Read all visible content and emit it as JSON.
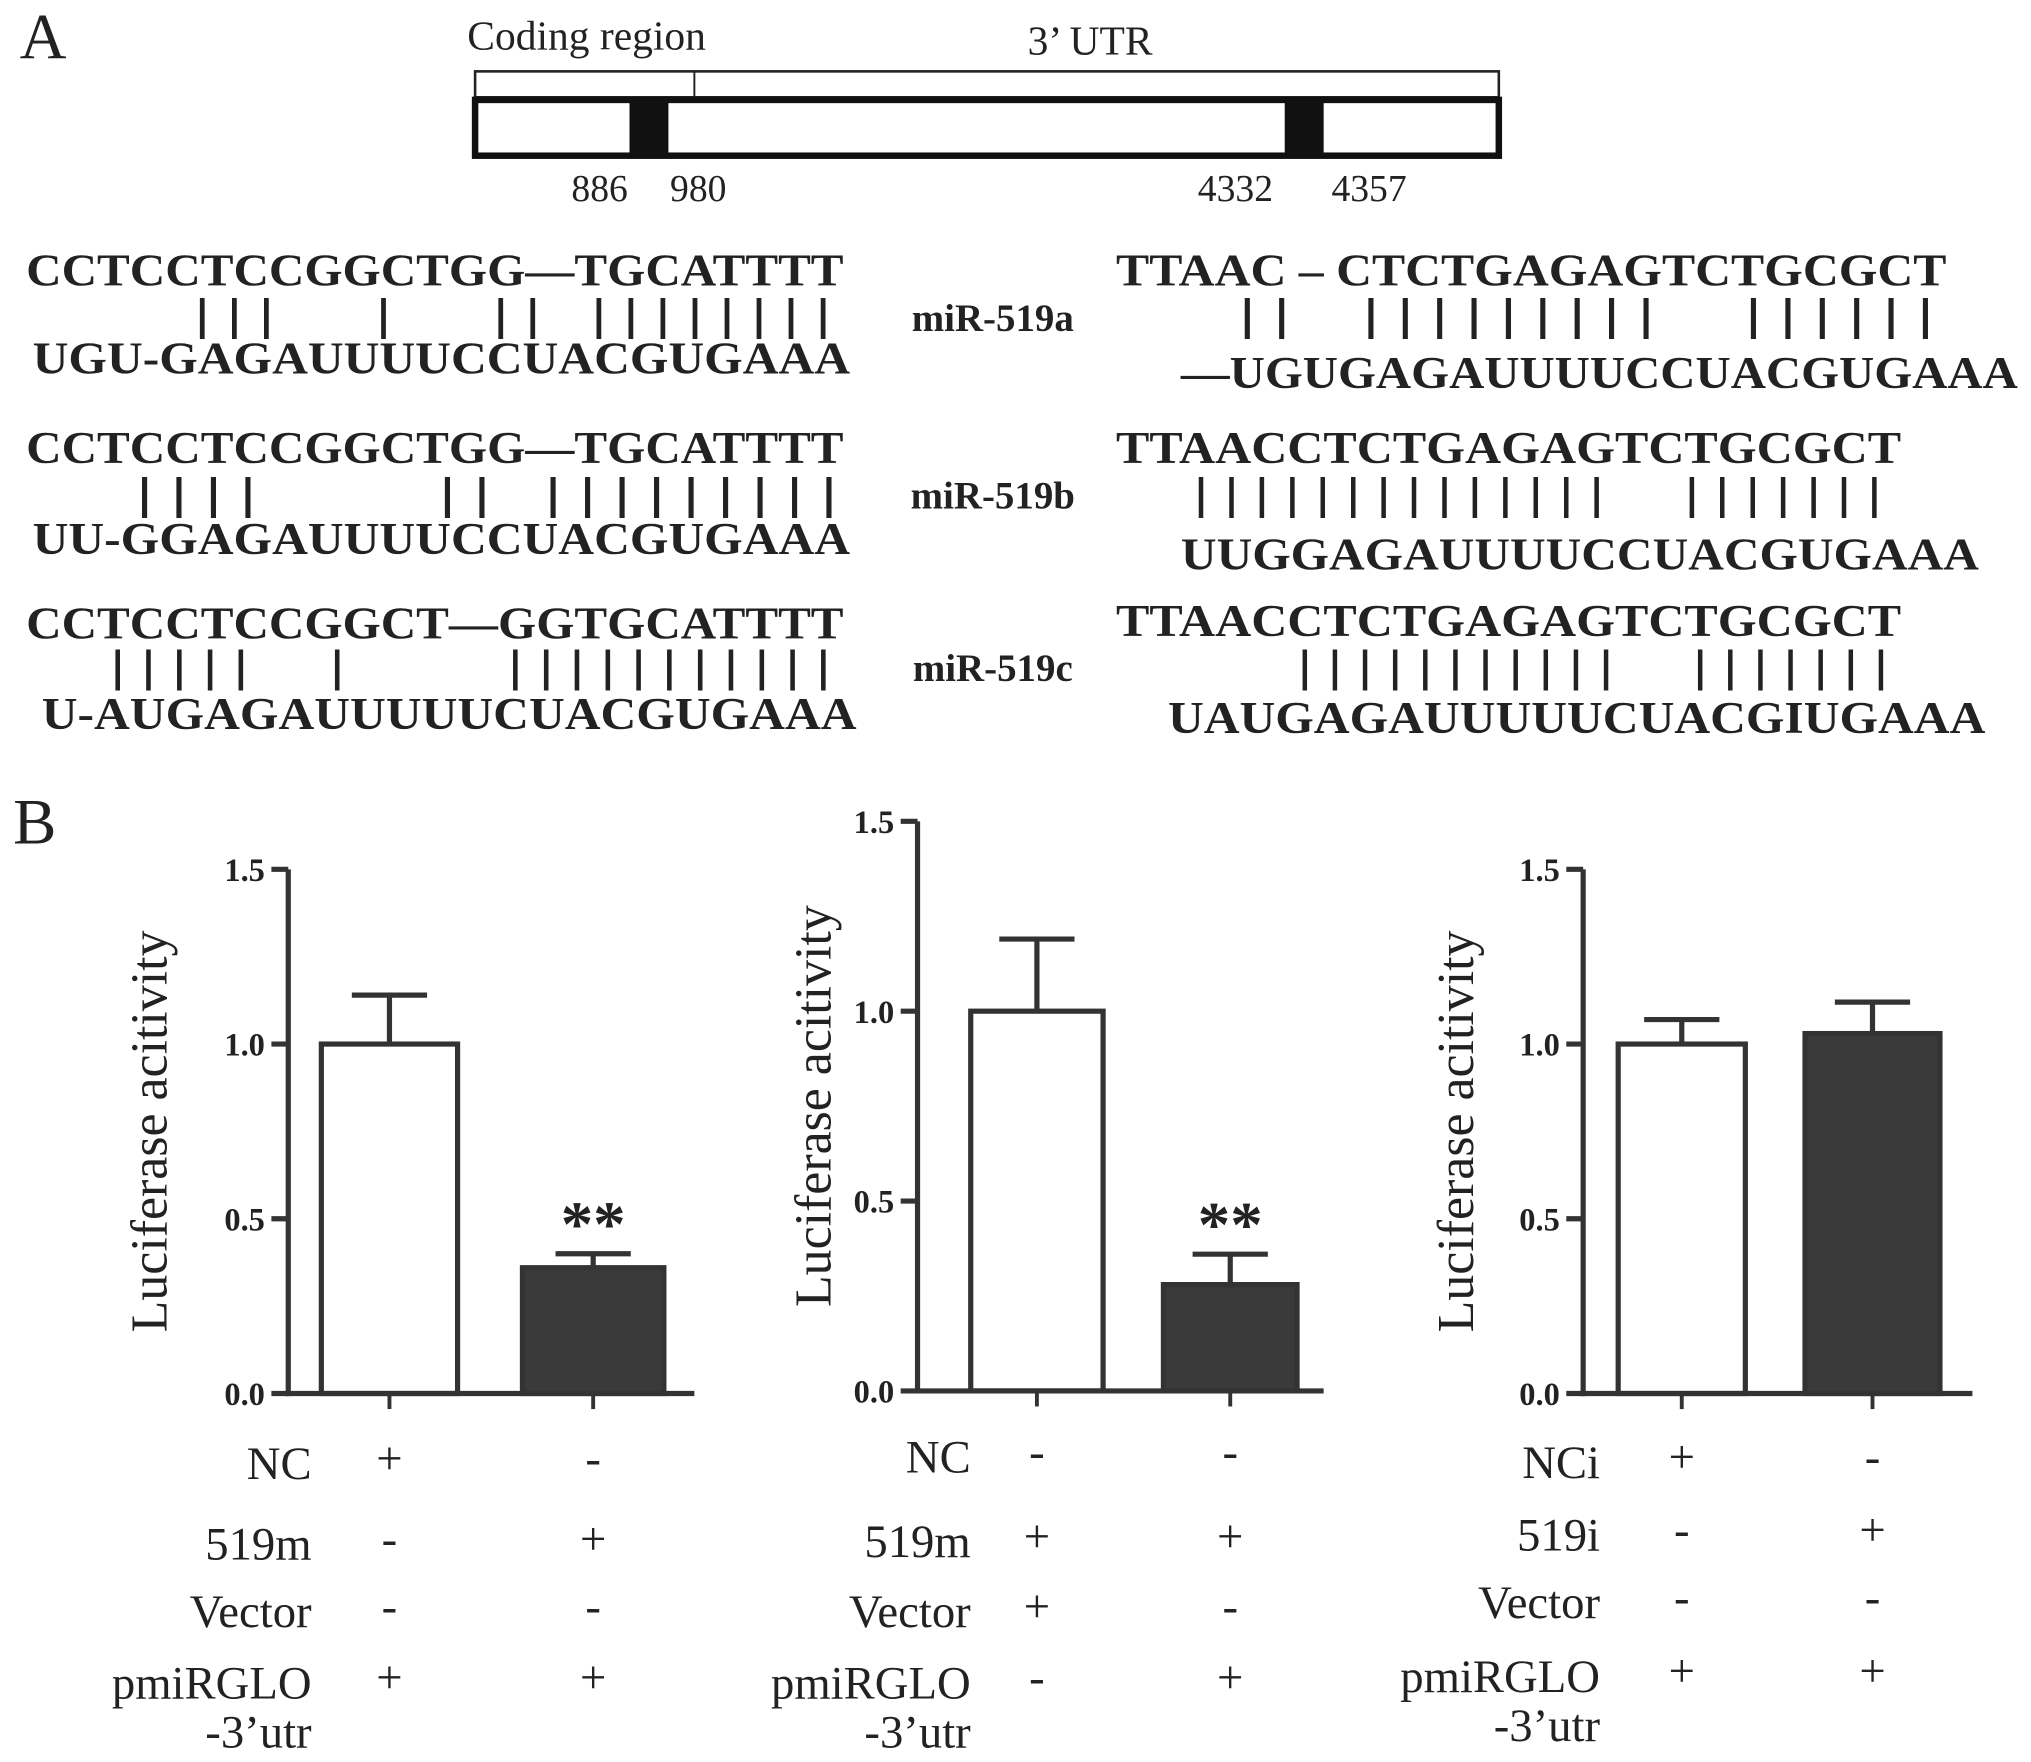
{
  "panel_labels": [
    "A",
    "B"
  ],
  "gene_map": {
    "region_labels": [
      "Coding region",
      "3’ UTR"
    ],
    "positions": [
      886,
      980,
      4332,
      4357
    ]
  },
  "alignments": [
    {
      "name": "miR-519a",
      "left": {
        "target": "CCTCCTCCGGCTGG—TGCATTTT",
        "pairs": "| | |      |      | |   | | | | | | | |",
        "mirna": "UGU-GAGAUUUUCCUACGUGAAA"
      },
      "right": {
        "target": "TTAAC – CTCTGAGAGTCTGCGCT",
        "pairs": "| |    | | | | | | | | |     | | | | | |",
        "mirna": "—UGUGAGAUUUUCCUACGUGAAA"
      }
    },
    {
      "name": "miR-519b",
      "left": {
        "target": "CCTCCTCCGGCTGG—TGCATTTT",
        "pairs": "| | | |          | |   | | | | | | | | |",
        "mirna": "UU-GGAGAUUUUCCUACGUGAAA"
      },
      "right": {
        "target": "TTAACCTCTGAGAGTCTGCGCT",
        "pairs": "| | | | | | | | | | | | | |     | | | | | | |",
        "mirna": "UUGGAGAUUUUCCUACGUGAAA"
      }
    },
    {
      "name": "miR-519c",
      "left": {
        "target": "CCTCCTCCGGCT—GGTGCATTTT",
        "pairs": "| | | | |     |          | | | | | | | | | | |",
        "mirna": "U-AUGAGAUUUUUCUACGUGAAA"
      },
      "right": {
        "target": "TTAACCTCTGAGAGTCTGCGCT",
        "pairs": "| | | | | | | | | | |     | | | | | | |",
        "mirna": "UAUGAGAUUUUUCUACGIUGAAA"
      }
    }
  ],
  "chart_data": [
    {
      "type": "bar",
      "y_label": "Luciferase acitivity",
      "categories": [
        null,
        null
      ],
      "values": [
        1.0,
        0.36
      ],
      "errors": [
        0.14,
        0.04
      ],
      "colors": [
        "#ffffff",
        "#3a3a3a"
      ],
      "edge_color": "#333333",
      "value_annotations": [
        null,
        "**"
      ],
      "ylim": [
        0,
        1.5
      ],
      "yticks": [
        {
          "value": 0,
          "label": "0.0"
        },
        {
          "value": 0.5,
          "label": "0.5"
        },
        {
          "value": 1,
          "label": "1.0"
        },
        {
          "value": 1.5,
          "label": "1.5"
        }
      ],
      "conditions": [
        {
          "label": "NC",
          "marks": [
            "+",
            "-"
          ]
        },
        {
          "label": "519m",
          "marks": [
            "-",
            "+"
          ]
        },
        {
          "label": "Vector",
          "marks": [
            "-",
            "-"
          ]
        },
        {
          "label": [
            "pmiRGLO",
            "-3’utr"
          ],
          "marks": [
            "+",
            "+"
          ]
        }
      ]
    },
    {
      "type": "bar",
      "y_label": "Luciferase acitivity",
      "categories": [
        null,
        null
      ],
      "values": [
        1.0,
        0.28
      ],
      "errors": [
        0.19,
        0.08
      ],
      "colors": [
        "#ffffff",
        "#3a3a3a"
      ],
      "edge_color": "#333333",
      "value_annotations": [
        null,
        "**"
      ],
      "ylim": [
        0,
        1.5
      ],
      "yticks": [
        {
          "value": 0,
          "label": "0.0"
        },
        {
          "value": 0.5,
          "label": "0.5"
        },
        {
          "value": 1,
          "label": "1.0"
        },
        {
          "value": 1.5,
          "label": "1.5"
        }
      ],
      "conditions": [
        {
          "label": "NC",
          "marks": [
            "-",
            "-"
          ]
        },
        {
          "label": "519m",
          "marks": [
            "+",
            "+"
          ]
        },
        {
          "label": "Vector",
          "marks": [
            "+",
            "-"
          ]
        },
        {
          "label": [
            "pmiRGLO",
            "-3’utr"
          ],
          "marks": [
            "-",
            "+"
          ]
        }
      ]
    },
    {
      "type": "bar",
      "y_label": "Luciferase acitivity",
      "categories": [
        null,
        null
      ],
      "values": [
        1.0,
        1.03
      ],
      "errors": [
        0.07,
        0.09
      ],
      "colors": [
        "#ffffff",
        "#3a3a3a"
      ],
      "edge_color": "#333333",
      "value_annotations": [
        null,
        null
      ],
      "ylim": [
        0,
        1.5
      ],
      "yticks": [
        {
          "value": 0,
          "label": "0.0"
        },
        {
          "value": 0.5,
          "label": "0.5"
        },
        {
          "value": 1,
          "label": "1.0"
        },
        {
          "value": 1.5,
          "label": "1.5"
        }
      ],
      "conditions": [
        {
          "label": "NCi",
          "marks": [
            "+",
            "-"
          ]
        },
        {
          "label": "519i",
          "marks": [
            "-",
            "+"
          ]
        },
        {
          "label": "Vector",
          "marks": [
            "-",
            "-"
          ]
        },
        {
          "label": [
            "pmiRGLO",
            "-3’utr"
          ],
          "marks": [
            "+",
            "+"
          ]
        }
      ]
    }
  ]
}
